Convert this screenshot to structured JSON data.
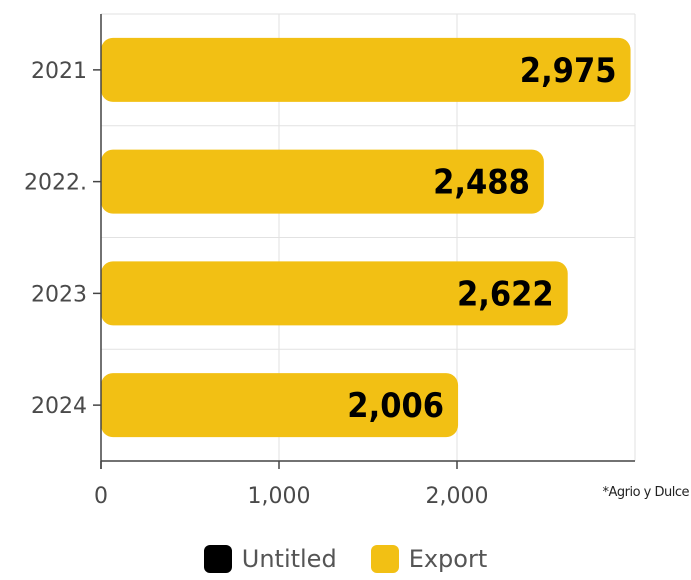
{
  "chart_data": {
    "type": "bar",
    "orientation": "horizontal",
    "categories": [
      "2021",
      "2022.",
      "2023",
      "2024"
    ],
    "series": [
      {
        "name": "Untitled",
        "values": [
          null,
          null,
          null,
          null
        ],
        "color": "#000000"
      },
      {
        "name": "Export",
        "values": [
          2975,
          2488,
          2622,
          2006
        ],
        "color": "#f2c014"
      }
    ],
    "data_labels": [
      "2,975",
      "2,488",
      "2,622",
      "2,006"
    ],
    "xlim": [
      0,
      3000
    ],
    "x_ticks": [
      0,
      1000,
      2000
    ],
    "x_tick_labels": [
      "0",
      "1,000",
      "2,000"
    ],
    "grid": true,
    "legend_position": "bottom"
  },
  "note": "*Agrio y Dulce"
}
